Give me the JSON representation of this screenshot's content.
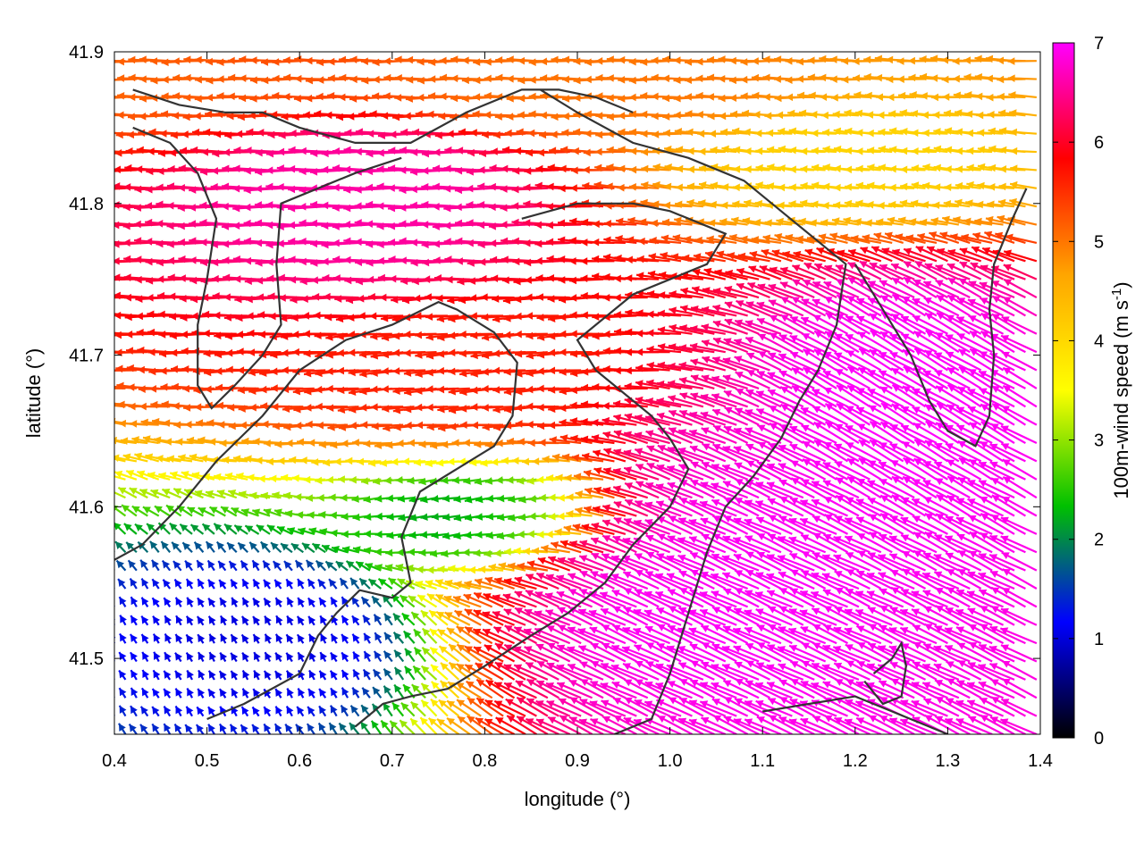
{
  "chart_data": {
    "type": "vector-field",
    "title": "",
    "xlabel": "longitude (°)",
    "ylabel": "latitude (°)",
    "xlim": [
      0.4,
      1.4
    ],
    "ylim": [
      41.45,
      41.9
    ],
    "xticks": [
      0.4,
      0.5,
      0.6,
      0.7,
      0.8,
      0.9,
      1.0,
      1.1,
      1.2,
      1.3,
      1.4
    ],
    "xtick_labels": [
      "0.4",
      "0.5",
      "0.6",
      "0.7",
      "0.8",
      "0.9",
      "1.0",
      "1.1",
      "1.2",
      "1.3",
      "1.4"
    ],
    "yticks": [
      41.5,
      41.6,
      41.7,
      41.8,
      41.9
    ],
    "ytick_labels": [
      "41.5",
      "41.6",
      "41.7",
      "41.8",
      "41.9"
    ],
    "colorbar": {
      "label": "100m-wind speed (m s",
      "label_superscript": "-1",
      "label_suffix": ")",
      "range": [
        0,
        7
      ],
      "ticks": [
        0,
        1,
        2,
        3,
        4,
        5,
        6,
        7
      ],
      "tick_labels": [
        "0",
        "1",
        "2",
        "3",
        "4",
        "5",
        "6",
        "7"
      ],
      "palette": [
        "#000000",
        "#0000ff",
        "#00c000",
        "#ffff00",
        "#ffa500",
        "#ff0000",
        "#ff00ff"
      ]
    },
    "grid": false,
    "field": {
      "quantity": "100m wind vectors coloured by speed (m s-1)",
      "grid_spacing_deg": [
        0.012,
        0.012
      ],
      "dominant_flow": "westward / north-westward",
      "regions": [
        {
          "name": "north-west plateau",
          "lon": [
            0.55,
            0.85
          ],
          "lat": [
            41.74,
            41.88
          ],
          "speed": 6.6,
          "direction_deg": 180
        },
        {
          "name": "north strip",
          "lon": [
            0.4,
            1.4
          ],
          "lat": [
            41.85,
            41.9
          ],
          "speed": 5.0,
          "direction_deg": 180
        },
        {
          "name": "north-east",
          "lon": [
            1.05,
            1.4
          ],
          "lat": [
            41.78,
            41.88
          ],
          "speed": 4.0,
          "direction_deg": 175
        },
        {
          "name": "central ridge",
          "lon": [
            0.6,
            1.0
          ],
          "lat": [
            41.64,
            41.74
          ],
          "speed": 5.6,
          "direction_deg": 185
        },
        {
          "name": "calm band",
          "lon": [
            0.65,
            0.98
          ],
          "lat": [
            41.56,
            41.63
          ],
          "speed": 2.0,
          "direction_deg": 190
        },
        {
          "name": "south-west low",
          "lon": [
            0.42,
            0.72
          ],
          "lat": [
            41.46,
            41.56
          ],
          "speed": 1.0,
          "direction_deg": 120
        },
        {
          "name": "south-east jet",
          "lon": [
            0.8,
            1.3
          ],
          "lat": [
            41.46,
            41.66
          ],
          "speed": 7.0,
          "direction_deg": 155
        },
        {
          "name": "east ridge",
          "lon": [
            1.12,
            1.4
          ],
          "lat": [
            41.56,
            41.76
          ],
          "speed": 7.0,
          "direction_deg": 150
        }
      ]
    },
    "boundaries": [
      [
        [
          0.42,
          41.875
        ],
        [
          0.47,
          41.865
        ],
        [
          0.52,
          41.86
        ],
        [
          0.56,
          41.86
        ],
        [
          0.6,
          41.85
        ],
        [
          0.66,
          41.84
        ],
        [
          0.72,
          41.84
        ],
        [
          0.78,
          41.86
        ],
        [
          0.84,
          41.875
        ],
        [
          0.88,
          41.875
        ],
        [
          0.92,
          41.87
        ],
        [
          0.96,
          41.86
        ]
      ],
      [
        [
          0.42,
          41.85
        ],
        [
          0.46,
          41.84
        ],
        [
          0.49,
          41.82
        ],
        [
          0.51,
          41.79
        ],
        [
          0.5,
          41.75
        ],
        [
          0.49,
          41.72
        ],
        [
          0.49,
          41.68
        ],
        [
          0.505,
          41.665
        ],
        [
          0.53,
          41.68
        ],
        [
          0.56,
          41.7
        ],
        [
          0.58,
          41.72
        ],
        [
          0.575,
          41.76
        ],
        [
          0.58,
          41.8
        ],
        [
          0.62,
          41.81
        ],
        [
          0.66,
          41.82
        ],
        [
          0.71,
          41.83
        ]
      ],
      [
        [
          0.4,
          41.565
        ],
        [
          0.43,
          41.575
        ],
        [
          0.47,
          41.6
        ],
        [
          0.51,
          41.63
        ],
        [
          0.56,
          41.66
        ],
        [
          0.6,
          41.69
        ],
        [
          0.65,
          41.71
        ],
        [
          0.7,
          41.72
        ],
        [
          0.75,
          41.735
        ],
        [
          0.77,
          41.73
        ],
        [
          0.81,
          41.715
        ],
        [
          0.835,
          41.695
        ],
        [
          0.83,
          41.66
        ],
        [
          0.81,
          41.64
        ],
        [
          0.77,
          41.625
        ],
        [
          0.73,
          41.61
        ],
        [
          0.71,
          41.58
        ],
        [
          0.72,
          41.55
        ],
        [
          0.7,
          41.54
        ],
        [
          0.665,
          41.545
        ],
        [
          0.64,
          41.53
        ],
        [
          0.62,
          41.515
        ],
        [
          0.6,
          41.49
        ],
        [
          0.57,
          41.48
        ],
        [
          0.54,
          41.47
        ],
        [
          0.5,
          41.46
        ]
      ],
      [
        [
          0.86,
          41.875
        ],
        [
          0.9,
          41.86
        ],
        [
          0.96,
          41.84
        ],
        [
          1.02,
          41.83
        ],
        [
          1.08,
          41.815
        ],
        [
          1.13,
          41.79
        ],
        [
          1.17,
          41.77
        ],
        [
          1.19,
          41.76
        ],
        [
          1.18,
          41.72
        ],
        [
          1.16,
          41.69
        ],
        [
          1.14,
          41.67
        ],
        [
          1.12,
          41.645
        ],
        [
          1.09,
          41.62
        ],
        [
          1.06,
          41.6
        ],
        [
          1.04,
          41.57
        ],
        [
          1.02,
          41.53
        ],
        [
          1.0,
          41.49
        ],
        [
          0.98,
          41.46
        ],
        [
          0.94,
          41.45
        ]
      ],
      [
        [
          0.84,
          41.79
        ],
        [
          0.9,
          41.8
        ],
        [
          0.96,
          41.8
        ],
        [
          1.0,
          41.795
        ],
        [
          1.04,
          41.785
        ],
        [
          1.06,
          41.78
        ],
        [
          1.04,
          41.76
        ],
        [
          1.0,
          41.75
        ],
        [
          0.96,
          41.74
        ],
        [
          0.92,
          41.72
        ],
        [
          0.9,
          41.71
        ],
        [
          0.92,
          41.69
        ],
        [
          0.95,
          41.675
        ],
        [
          0.98,
          41.66
        ],
        [
          1.0,
          41.645
        ],
        [
          1.02,
          41.625
        ],
        [
          1.0,
          41.6
        ],
        [
          0.96,
          41.575
        ],
        [
          0.93,
          41.55
        ],
        [
          0.89,
          41.53
        ],
        [
          0.85,
          41.515
        ],
        [
          0.8,
          41.495
        ],
        [
          0.76,
          41.48
        ],
        [
          0.72,
          41.475
        ],
        [
          0.69,
          41.47
        ],
        [
          0.66,
          41.455
        ]
      ],
      [
        [
          1.2,
          41.76
        ],
        [
          1.22,
          41.74
        ],
        [
          1.24,
          41.72
        ],
        [
          1.26,
          41.7
        ],
        [
          1.28,
          41.67
        ],
        [
          1.3,
          41.65
        ],
        [
          1.33,
          41.64
        ],
        [
          1.345,
          41.66
        ],
        [
          1.35,
          41.7
        ],
        [
          1.345,
          41.73
        ],
        [
          1.35,
          41.76
        ],
        [
          1.37,
          41.79
        ],
        [
          1.385,
          41.81
        ]
      ],
      [
        [
          1.22,
          41.49
        ],
        [
          1.24,
          41.5
        ],
        [
          1.25,
          41.51
        ],
        [
          1.255,
          41.495
        ],
        [
          1.25,
          41.475
        ],
        [
          1.23,
          41.47
        ],
        [
          1.21,
          41.485
        ]
      ],
      [
        [
          1.1,
          41.465
        ],
        [
          1.15,
          41.47
        ],
        [
          1.2,
          41.475
        ],
        [
          1.24,
          41.465
        ],
        [
          1.28,
          41.455
        ],
        [
          1.3,
          41.45
        ]
      ]
    ]
  }
}
